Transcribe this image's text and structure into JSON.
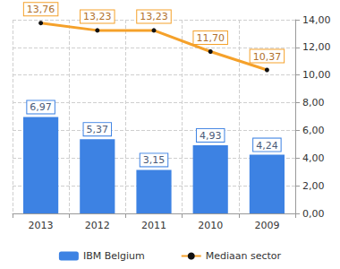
{
  "chart_data": {
    "type": "bar",
    "categories": [
      "2013",
      "2012",
      "2011",
      "2010",
      "2009"
    ],
    "series": [
      {
        "name": "IBM Belgium",
        "type": "bar",
        "color": "#3d82e3",
        "values": [
          6.97,
          5.37,
          3.15,
          4.93,
          4.24
        ],
        "value_labels": [
          "6,97",
          "5,37",
          "3,15",
          "4,93",
          "4,24"
        ]
      },
      {
        "name": "Mediaan sector",
        "type": "line",
        "color": "#f5a12a",
        "marker": "circle",
        "values": [
          13.76,
          13.23,
          13.23,
          11.7,
          10.37
        ],
        "value_labels": [
          "13,76",
          "13,23",
          "13,23",
          "11,70",
          "10,37"
        ]
      }
    ],
    "ylim": [
      0,
      14
    ],
    "yticks": [
      {
        "value": 0,
        "label": "0,00"
      },
      {
        "value": 2,
        "label": "2,00"
      },
      {
        "value": 4,
        "label": "4,00"
      },
      {
        "value": 6,
        "label": "6,00"
      },
      {
        "value": 8,
        "label": "8,00"
      },
      {
        "value": 10,
        "label": "10,00"
      },
      {
        "value": 12,
        "label": "12,00"
      },
      {
        "value": 14,
        "label": "14,00"
      }
    ],
    "grid": true,
    "legend": "bottom",
    "data_labels": true
  }
}
